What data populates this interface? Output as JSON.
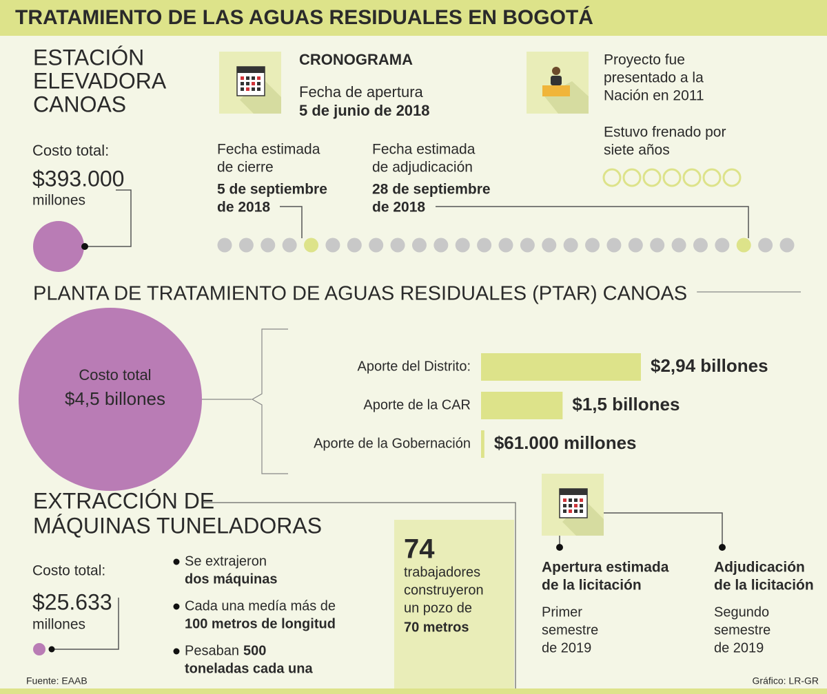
{
  "header": {
    "title": "TRATAMIENTO DE LAS AGUAS RESIDUALES EN BOGOTÁ"
  },
  "estacion": {
    "title": [
      "ESTACIÓN",
      "ELEVADORA",
      "CANOAS"
    ],
    "cost_label": "Costo total:",
    "cost": "$393.000",
    "cost_unit": "millones"
  },
  "cronograma": {
    "title": "CRONOGRAMA",
    "opening_label": "Fecha de apertura",
    "opening_date": "5 de junio de 2018",
    "closing_label": [
      "Fecha estimada",
      "de cierre"
    ],
    "closing_date": [
      "5 de septiembre",
      "de 2018"
    ],
    "award_label": [
      "Fecha estimada",
      "de adjudicación"
    ],
    "award_date": [
      "28 de septiembre",
      "de 2018"
    ]
  },
  "proyecto": {
    "presented": [
      "Proyecto fue",
      "presentado a la",
      "Nación en 2011"
    ],
    "stalled": [
      "Estuvo frenado por",
      "siete años"
    ]
  },
  "ptar": {
    "title": "PLANTA DE TRATAMIENTO DE AGUAS RESIDUALES (PTAR) CANOAS",
    "cost_label": "Costo total",
    "cost": "$4,5 billones"
  },
  "chart_data": {
    "type": "bar",
    "categories": [
      "Aporte del Distrito:",
      "Aporte de la CAR",
      "Aporte de la Gobernación"
    ],
    "values": [
      2.94,
      1.5,
      0.061
    ],
    "value_labels": [
      "$2,94 billones",
      "$1,5 billones",
      "$61.000 millones"
    ],
    "color": "#dde38a"
  },
  "extraccion": {
    "title": [
      "EXTRACCIÓN DE",
      "MÁQUINAS TUNELADORAS"
    ],
    "cost_label": "Costo total:",
    "cost": "$25.633",
    "cost_unit": "millones",
    "bullets": [
      [
        [
          {
            "text": "Se extrajeron",
            "bold": false
          }
        ],
        [
          {
            "text": "dos máquinas",
            "bold": true
          }
        ]
      ],
      [
        [
          {
            "text": "Cada una medía más de",
            "bold": false
          }
        ],
        [
          {
            "text": "100 metros de longitud",
            "bold": true
          }
        ]
      ],
      [
        [
          {
            "text": "Pesaban",
            "bold": false
          },
          {
            "text": "500",
            "bold": true
          }
        ],
        [
          {
            "text": "toneladas cada una",
            "bold": true
          }
        ]
      ]
    ],
    "workers": {
      "number": "74",
      "text": [
        "trabajadores",
        "construyeron",
        "un pozo de"
      ],
      "depth": "70 metros"
    }
  },
  "licitacion": {
    "opening": {
      "title": [
        "Apertura estimada",
        "de la licitación"
      ],
      "detail": [
        "Primer",
        "semestre",
        "de 2019"
      ]
    },
    "award": {
      "title": [
        "Adjudicación",
        "de la licitación"
      ],
      "detail": [
        "Segundo",
        "semestre",
        "de 2019"
      ]
    }
  },
  "footer": {
    "source": "Fuente: EAAB",
    "credit": "Gráfico: LR-GR"
  }
}
